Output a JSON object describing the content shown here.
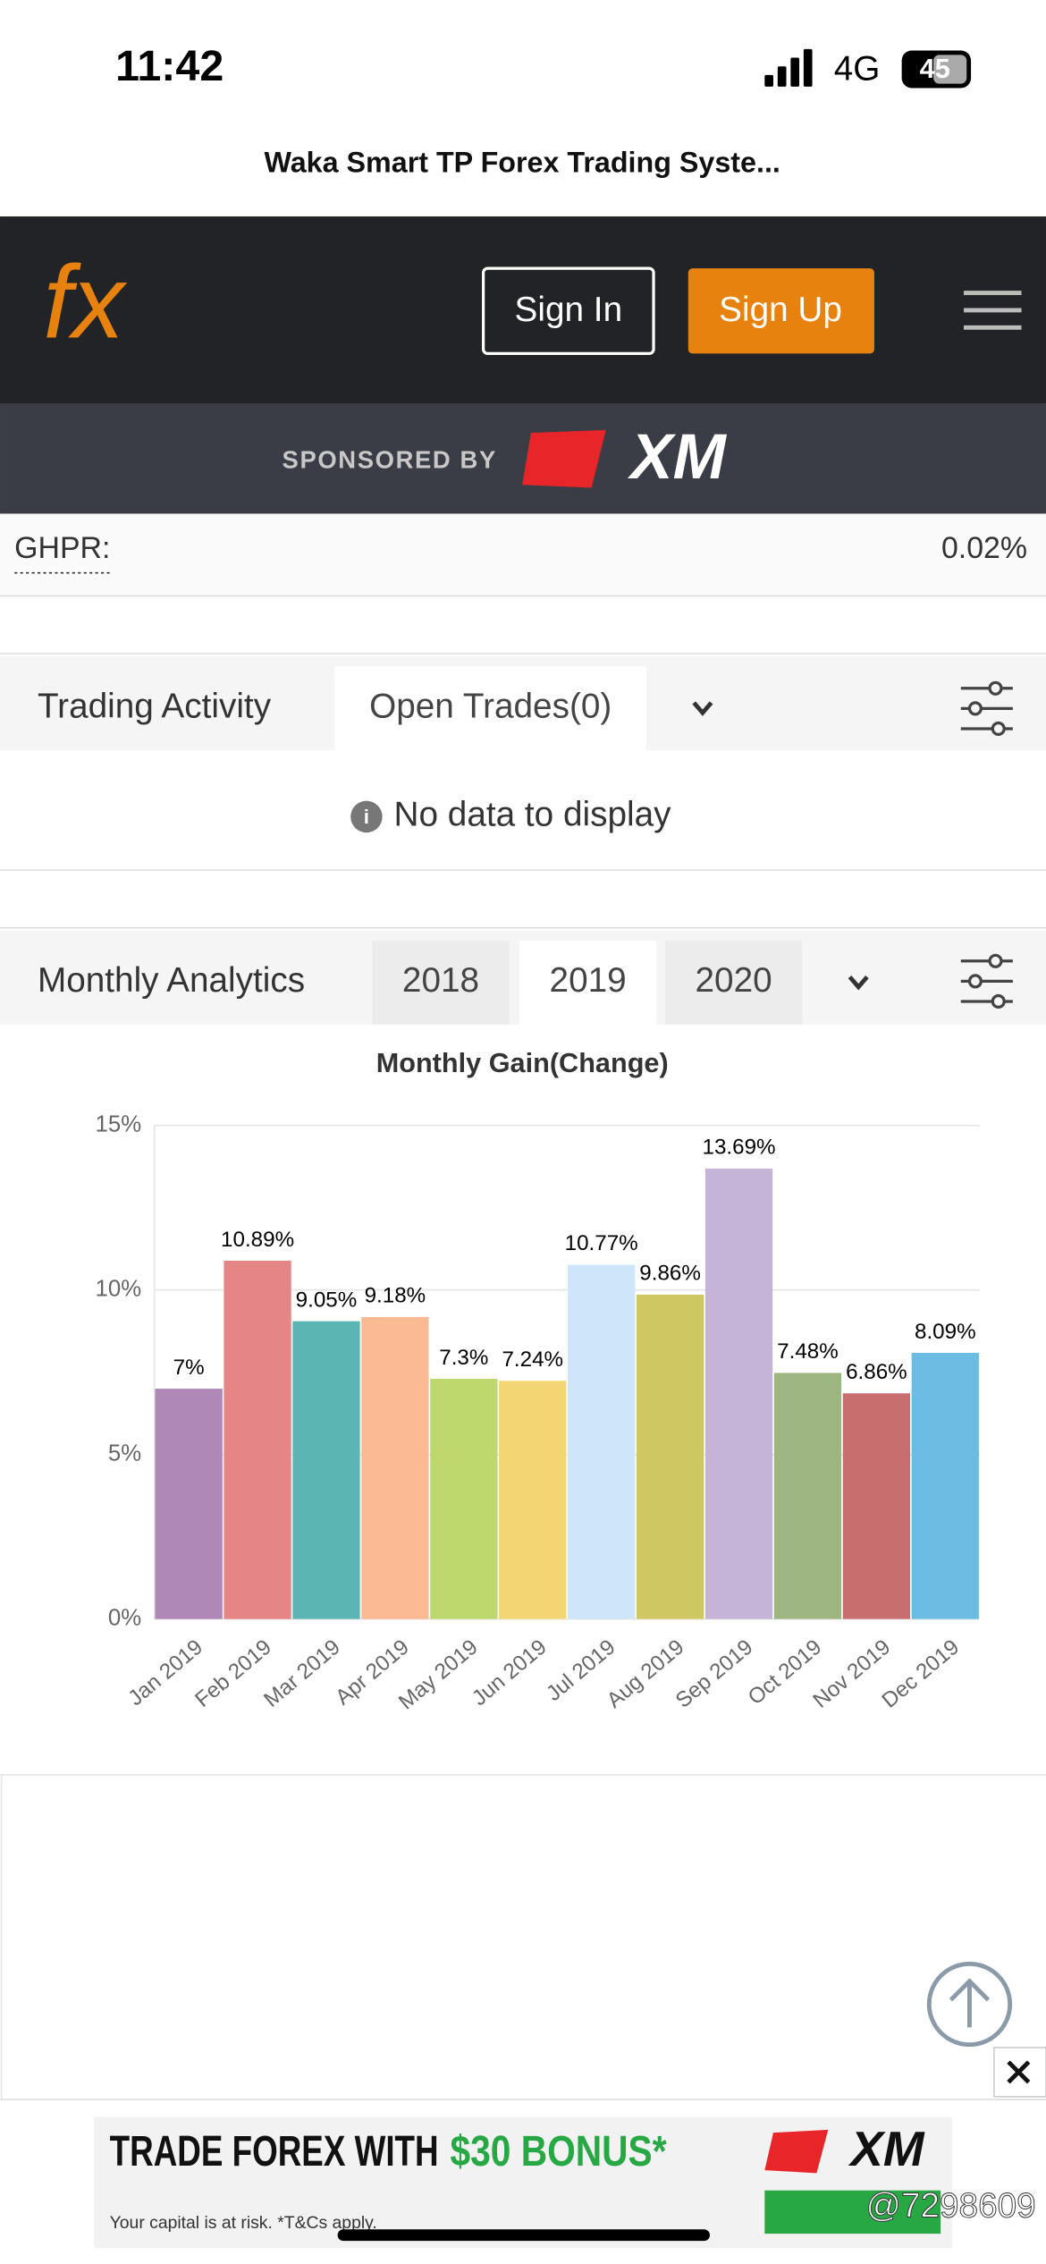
{
  "status_bar": {
    "time": "11:42",
    "network": "4G",
    "battery": "45"
  },
  "page_title": "Waka Smart TP Forex Trading Syste...",
  "nav": {
    "logo": "fx",
    "sign_in": "Sign In",
    "sign_up": "Sign Up"
  },
  "sponsor": {
    "label": "SPONSORED BY",
    "brand": "XM"
  },
  "ghpr": {
    "label": "GHPR:",
    "value": "0.02%"
  },
  "trading_activity": {
    "title": "Trading Activity",
    "tab": "Open Trades(0)",
    "empty_message": "No data to display"
  },
  "monthly_analytics": {
    "title": "Monthly Analytics",
    "tabs": [
      "2018",
      "2019",
      "2020"
    ]
  },
  "chart_data": {
    "type": "bar",
    "title": "Monthly Gain(Change)",
    "categories": [
      "Jan 2019",
      "Feb 2019",
      "Mar 2019",
      "Apr 2019",
      "May 2019",
      "Jun 2019",
      "Jul 2019",
      "Aug 2019",
      "Sep 2019",
      "Oct 2019",
      "Nov 2019",
      "Dec 2019"
    ],
    "values": [
      7,
      10.89,
      9.05,
      9.18,
      7.3,
      7.24,
      10.77,
      9.86,
      13.69,
      7.48,
      6.86,
      8.09
    ],
    "value_labels": [
      "7%",
      "10.89%",
      "9.05%",
      "9.18%",
      "7.3%",
      "7.24%",
      "10.77%",
      "9.86%",
      "13.69%",
      "7.48%",
      "6.86%",
      "8.09%"
    ],
    "colors": [
      "#b088b8",
      "#e58585",
      "#5bb5b0",
      "#fbb994",
      "#bdd86d",
      "#f4d574",
      "#cfe6fa",
      "#cfc862",
      "#c6b4d8",
      "#9db57f",
      "#c96e6e",
      "#6cbbe3"
    ],
    "ylim": [
      0,
      15
    ],
    "yticks": [
      {
        "value": 0,
        "label": "0%"
      },
      {
        "value": 5,
        "label": "5%"
      },
      {
        "value": 10,
        "label": "10%"
      },
      {
        "value": 15,
        "label": "15%"
      }
    ],
    "grid": true
  },
  "ad": {
    "headline": "TRADE FOREX WITH",
    "bonus": "$30 BONUS*",
    "disclaimer": "Your capital is at risk. *T&Cs apply.",
    "brand": "XM"
  },
  "watermark": "@7298609"
}
